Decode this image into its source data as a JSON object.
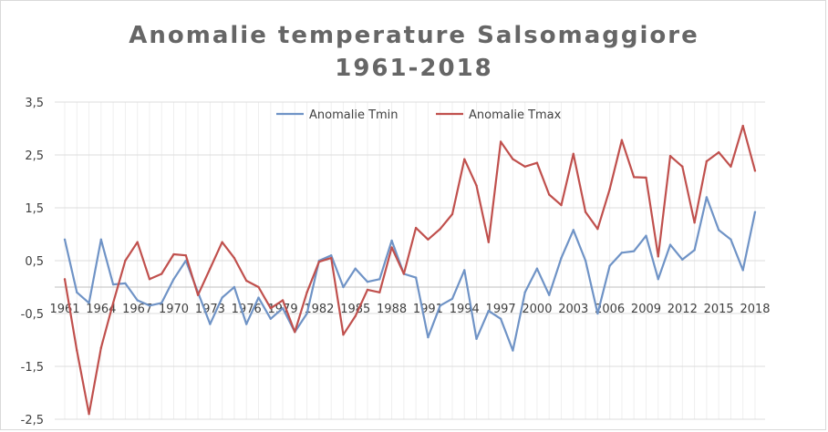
{
  "chart_data": {
    "type": "line",
    "title": "Anomalie temperature Salsomaggiore",
    "subtitle": "1961-2018",
    "xlabel": "",
    "ylabel": "",
    "ylim": [
      -2.5,
      3.5
    ],
    "y_ticks": [
      "-2,5",
      "-1,5",
      "-0,5",
      "0,5",
      "1,5",
      "2,5",
      "3,5"
    ],
    "x_tick_labels": [
      "1961",
      "1964",
      "1967",
      "1970",
      "1973",
      "1976",
      "1979",
      "1982",
      "1985",
      "1988",
      "1991",
      "1994",
      "1997",
      "2000",
      "2003",
      "2006",
      "2009",
      "2012",
      "2015",
      "2018"
    ],
    "grid": true,
    "legend_position": "top",
    "x": [
      1961,
      1962,
      1963,
      1964,
      1965,
      1966,
      1967,
      1968,
      1969,
      1970,
      1971,
      1972,
      1973,
      1974,
      1975,
      1976,
      1977,
      1978,
      1979,
      1980,
      1981,
      1982,
      1983,
      1984,
      1985,
      1986,
      1987,
      1988,
      1989,
      1990,
      1991,
      1992,
      1993,
      1994,
      1995,
      1996,
      1997,
      1998,
      1999,
      2000,
      2001,
      2002,
      2003,
      2004,
      2005,
      2006,
      2007,
      2008,
      2009,
      2010,
      2011,
      2012,
      2013,
      2014,
      2015,
      2016,
      2017,
      2018
    ],
    "series": [
      {
        "name": "Anomalie Tmin",
        "color": "#6f93c6",
        "values": [
          0.9,
          -0.1,
          -0.3,
          0.9,
          0.05,
          0.07,
          -0.25,
          -0.35,
          -0.3,
          0.15,
          0.5,
          -0.1,
          -0.7,
          -0.2,
          0.0,
          -0.7,
          -0.2,
          -0.6,
          -0.4,
          -0.85,
          -0.5,
          0.5,
          0.6,
          0.0,
          0.35,
          0.1,
          0.15,
          0.88,
          0.25,
          0.18,
          -0.95,
          -0.35,
          -0.22,
          0.32,
          -0.98,
          -0.45,
          -0.6,
          -1.2,
          -0.1,
          0.35,
          -0.15,
          0.55,
          1.08,
          0.5,
          -0.5,
          0.4,
          0.65,
          0.68,
          0.97,
          0.15,
          0.8,
          0.52,
          0.7,
          1.7,
          1.08,
          0.9,
          0.32,
          1.42
        ]
      },
      {
        "name": "Anomalie Tmax",
        "color": "#c0504d",
        "values": [
          0.15,
          -1.2,
          -2.4,
          -1.15,
          -0.3,
          0.5,
          0.85,
          0.15,
          0.25,
          0.62,
          0.6,
          -0.15,
          0.35,
          0.85,
          0.55,
          0.12,
          0.0,
          -0.4,
          -0.25,
          -0.85,
          -0.1,
          0.48,
          0.55,
          -0.9,
          -0.55,
          -0.05,
          -0.1,
          0.75,
          0.25,
          1.12,
          0.9,
          1.1,
          1.38,
          2.42,
          1.92,
          0.85,
          2.75,
          2.42,
          2.28,
          2.35,
          1.75,
          1.55,
          2.52,
          1.42,
          1.1,
          1.85,
          2.78,
          2.08,
          2.07,
          0.58,
          2.48,
          2.28,
          1.22,
          2.38,
          2.55,
          2.28,
          3.05,
          2.2
        ]
      }
    ]
  }
}
